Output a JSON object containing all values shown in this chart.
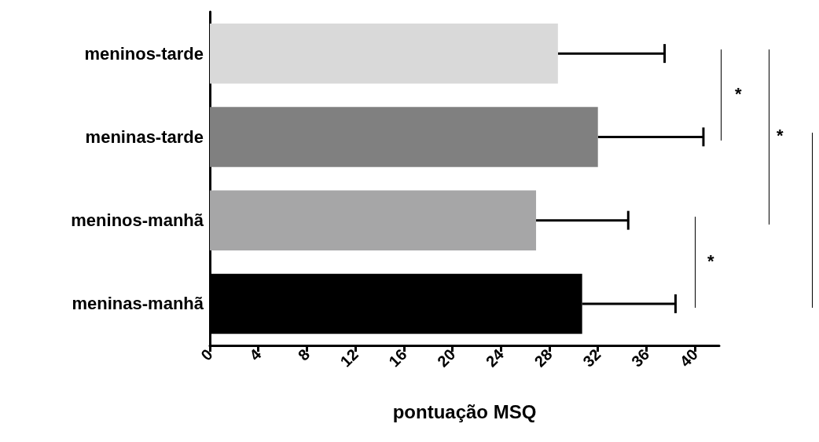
{
  "chart_data": {
    "type": "bar",
    "orientation": "horizontal",
    "xlabel": "pontuação MSQ",
    "categories": [
      "meninos-tarde",
      "meninas-tarde",
      "meninos-manhã",
      "meninas-manhã"
    ],
    "values": [
      28.7,
      32.0,
      26.9,
      30.7
    ],
    "colors": [
      "#d9d9d9",
      "#808080",
      "#a6a6a7",
      "#000000"
    ],
    "errors": [
      [
        28.7,
        37.5
      ],
      [
        32.0,
        40.7
      ],
      [
        26.9,
        34.5
      ],
      [
        30.7,
        38.4
      ]
    ],
    "xlim": [
      0,
      42
    ],
    "xticks": [
      0,
      4,
      8,
      12,
      16,
      20,
      24,
      28,
      32,
      36,
      40
    ],
    "annotations": [
      "*",
      "*",
      "*"
    ]
  }
}
